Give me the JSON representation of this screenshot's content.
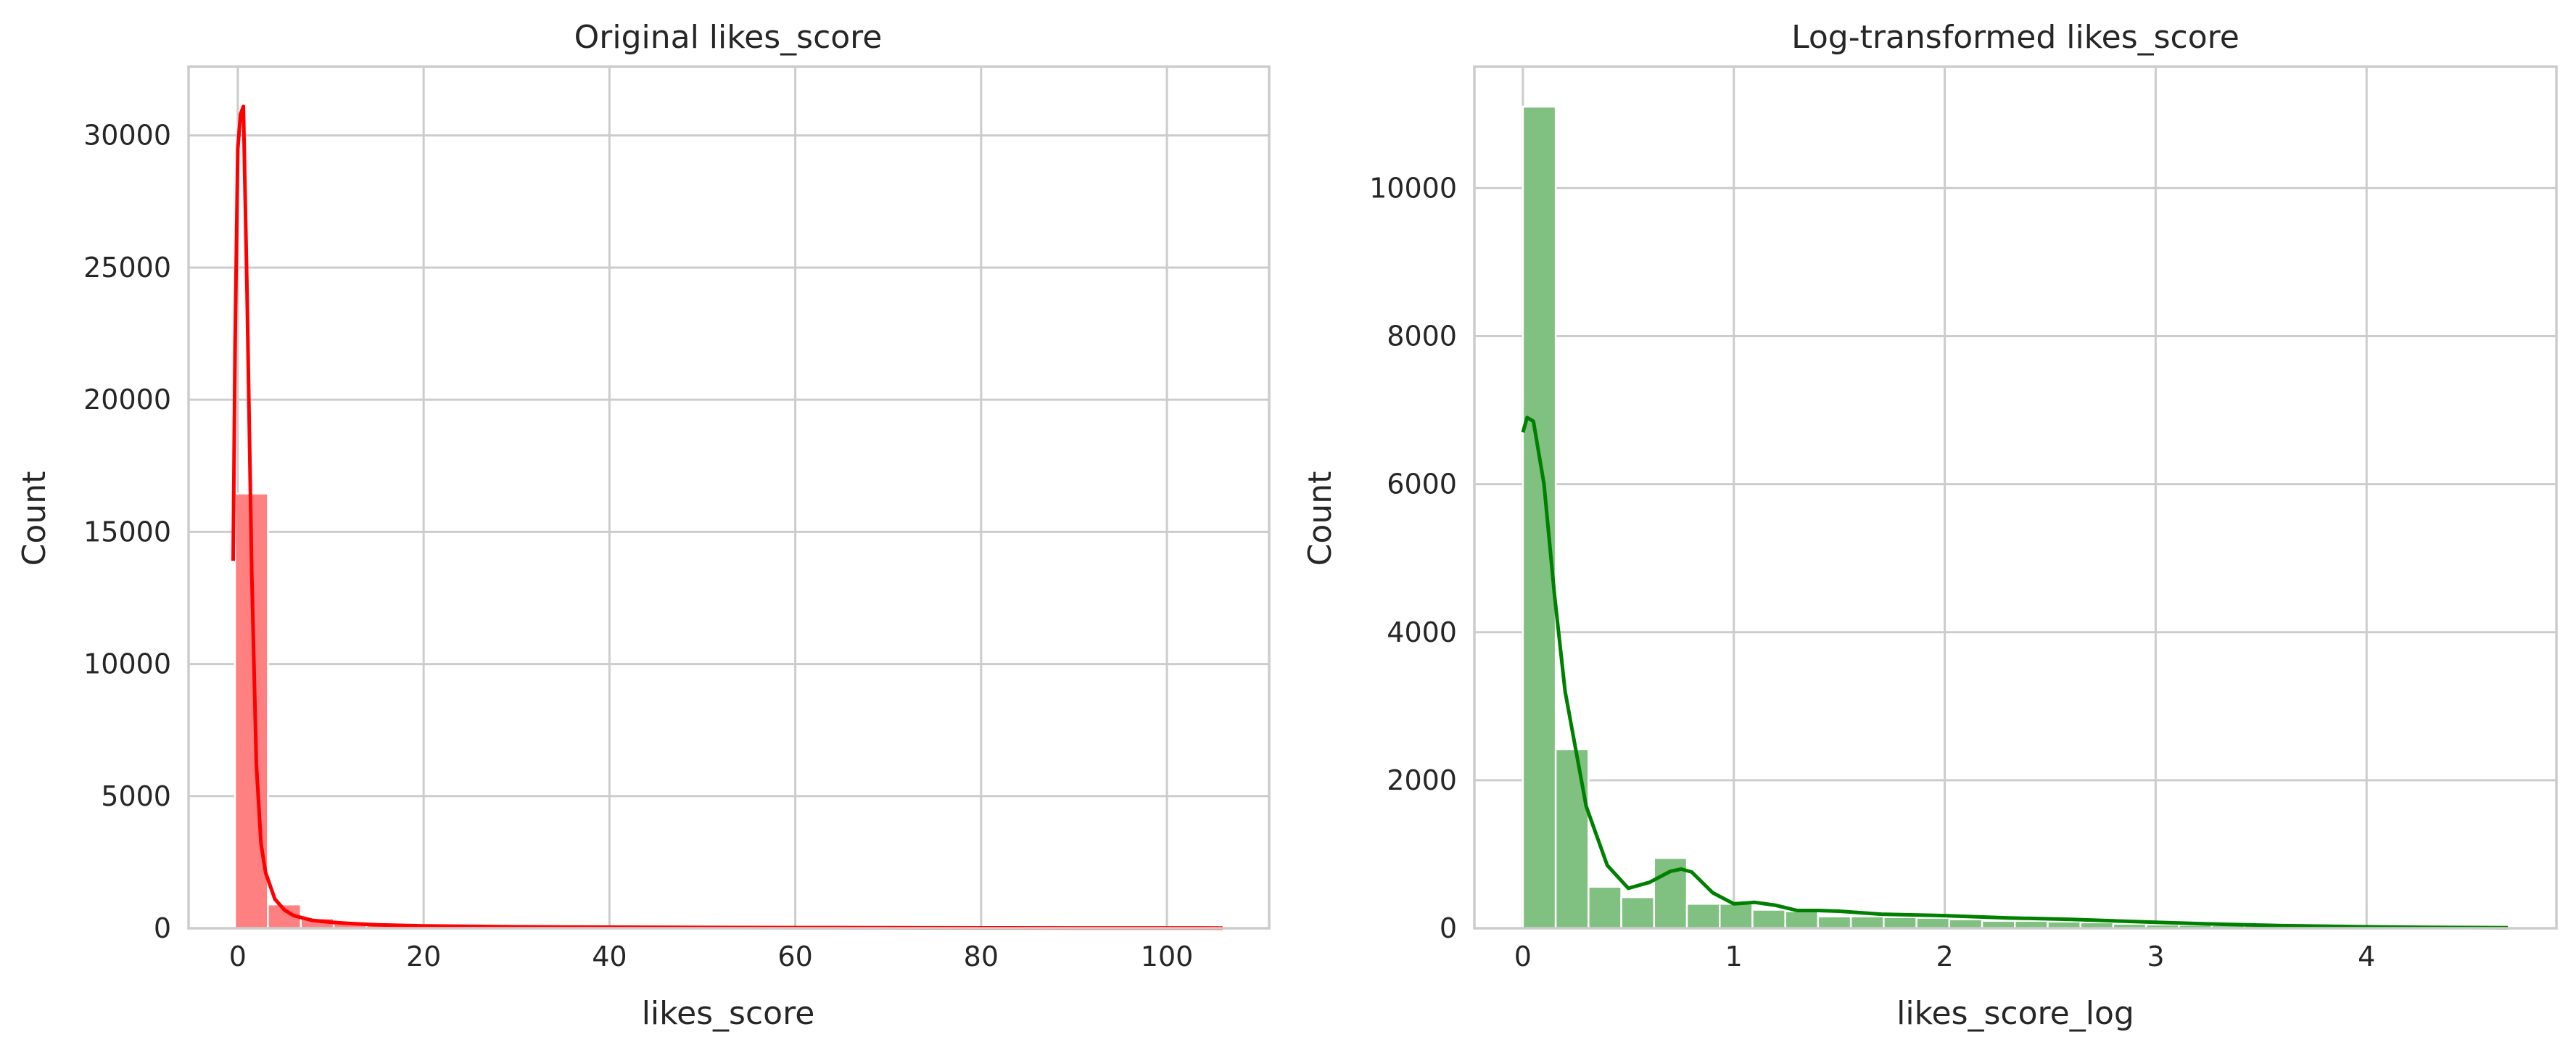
{
  "chart_data": [
    {
      "type": "bar",
      "title": "Original likes_score",
      "xlabel": "likes_score",
      "ylabel": "Count",
      "xlim": [
        -5.3,
        111
      ],
      "ylim": [
        0,
        32600
      ],
      "xticks": [
        0,
        20,
        40,
        60,
        80,
        100
      ],
      "xtick_labels": [
        "0",
        "20",
        "40",
        "60",
        "80",
        "100"
      ],
      "yticks": [
        0,
        5000,
        10000,
        15000,
        20000,
        25000,
        30000
      ],
      "ytick_labels": [
        "0",
        "5000",
        "10000",
        "15000",
        "20000",
        "25000",
        "30000"
      ],
      "grid": true,
      "bar_color": "#ff0000",
      "bars": {
        "x_start": -0.3,
        "bin_width": 3.54,
        "counts": [
          16450,
          900,
          380,
          230,
          170,
          120,
          90,
          70,
          55,
          45,
          38,
          32,
          27,
          24,
          21,
          18,
          16,
          14,
          12,
          11,
          10,
          9,
          8,
          7,
          6,
          6,
          5,
          5,
          4,
          4
        ]
      },
      "kde": {
        "x": [
          -0.5,
          -0.3,
          0,
          0.3,
          0.6,
          1,
          1.5,
          2,
          2.5,
          3,
          4,
          5,
          6,
          8,
          10,
          12,
          15,
          20,
          25,
          30,
          40,
          50,
          60,
          70,
          80,
          90,
          100,
          106
        ],
        "y": [
          13900,
          22000,
          29500,
          30800,
          31100,
          24000,
          13500,
          6200,
          3200,
          2100,
          1100,
          700,
          480,
          300,
          230,
          180,
          130,
          90,
          70,
          55,
          40,
          30,
          25,
          20,
          15,
          12,
          10,
          8
        ]
      }
    },
    {
      "type": "bar",
      "title": "Log-transformed likes_score",
      "xlabel": "likes_score_log",
      "ylabel": "Count",
      "xlim": [
        -0.23,
        4.9
      ],
      "ylim": [
        0,
        11640
      ],
      "xticks": [
        0,
        1,
        2,
        3,
        4
      ],
      "xtick_labels": [
        "0",
        "1",
        "2",
        "3",
        "4"
      ],
      "yticks": [
        0,
        2000,
        4000,
        6000,
        8000,
        10000
      ],
      "ytick_labels": [
        "0",
        "2000",
        "4000",
        "6000",
        "8000",
        "10000"
      ],
      "grid": true,
      "bar_color": "#008000",
      "bars": {
        "x_start": 0,
        "bin_width": 0.1555,
        "counts": [
          11100,
          2420,
          560,
          420,
          950,
          330,
          330,
          250,
          230,
          160,
          160,
          150,
          140,
          120,
          100,
          100,
          90,
          80,
          60,
          50,
          45,
          40,
          35,
          30,
          25,
          20,
          20,
          15,
          12,
          10
        ]
      },
      "kde": {
        "x": [
          0,
          0.02,
          0.05,
          0.1,
          0.15,
          0.2,
          0.3,
          0.4,
          0.5,
          0.6,
          0.7,
          0.75,
          0.8,
          0.9,
          1.0,
          1.1,
          1.2,
          1.3,
          1.4,
          1.5,
          1.7,
          2.0,
          2.3,
          2.6,
          2.8,
          3.0,
          3.3,
          3.6,
          4.0,
          4.3,
          4.67
        ],
        "y": [
          6700,
          6900,
          6850,
          6000,
          4500,
          3200,
          1650,
          850,
          540,
          620,
          770,
          800,
          760,
          480,
          330,
          350,
          310,
          240,
          240,
          230,
          190,
          170,
          140,
          120,
          100,
          80,
          55,
          35,
          20,
          12,
          8
        ]
      }
    }
  ]
}
